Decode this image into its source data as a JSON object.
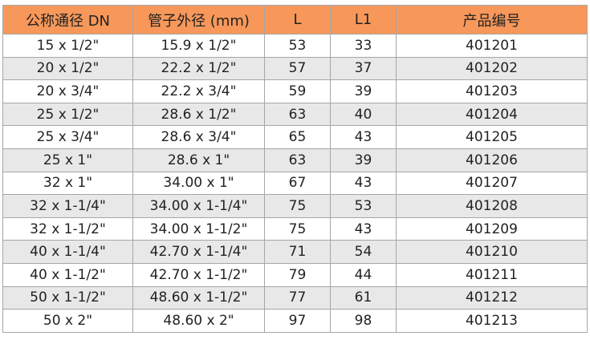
{
  "table": {
    "headers": [
      "公称通径 DN",
      "管子外径 (mm)",
      "L",
      "L1",
      "产品编号"
    ],
    "rows": [
      [
        "15 x 1/2\"",
        "15.9 x 1/2\"",
        "53",
        "33",
        "401201"
      ],
      [
        "20 x 1/2\"",
        "22.2 x 1/2\"",
        "57",
        "37",
        "401202"
      ],
      [
        "20 x 3/4\"",
        "22.2 x 3/4\"",
        "59",
        "39",
        "401203"
      ],
      [
        "25 x 1/2\"",
        "28.6 x 1/2\"",
        "63",
        "40",
        "401204"
      ],
      [
        "25 x 3/4\"",
        "28.6 x 3/4\"",
        "65",
        "43",
        "401205"
      ],
      [
        "25 x 1\"",
        "28.6 x 1\"",
        "63",
        "39",
        "401206"
      ],
      [
        "32 x 1\"",
        "34.00 x 1\"",
        "67",
        "43",
        "401207"
      ],
      [
        "32 x 1-1/4\"",
        "34.00 x 1-1/4\"",
        "75",
        "53",
        "401208"
      ],
      [
        "32 x 1-1/2\"",
        "34.00 x 1-1/2\"",
        "75",
        "43",
        "401209"
      ],
      [
        "40 x 1-1/4\"",
        "42.70 x 1-1/4\"",
        "71",
        "54",
        "401210"
      ],
      [
        "40 x 1-1/2\"",
        "42.70 x 1-1/2\"",
        "79",
        "44",
        "401211"
      ],
      [
        "50 x 1-1/2\"",
        "48.60 x 1-1/2\"",
        "77",
        "61",
        "401212"
      ],
      [
        "50 x 2\"",
        "48.60 x 2\"",
        "97",
        "98",
        "401213"
      ]
    ]
  },
  "colors": {
    "header_bg": "#f7985a",
    "alt_row_bg": "#e8e8e8",
    "border": "#a6a6a6"
  }
}
